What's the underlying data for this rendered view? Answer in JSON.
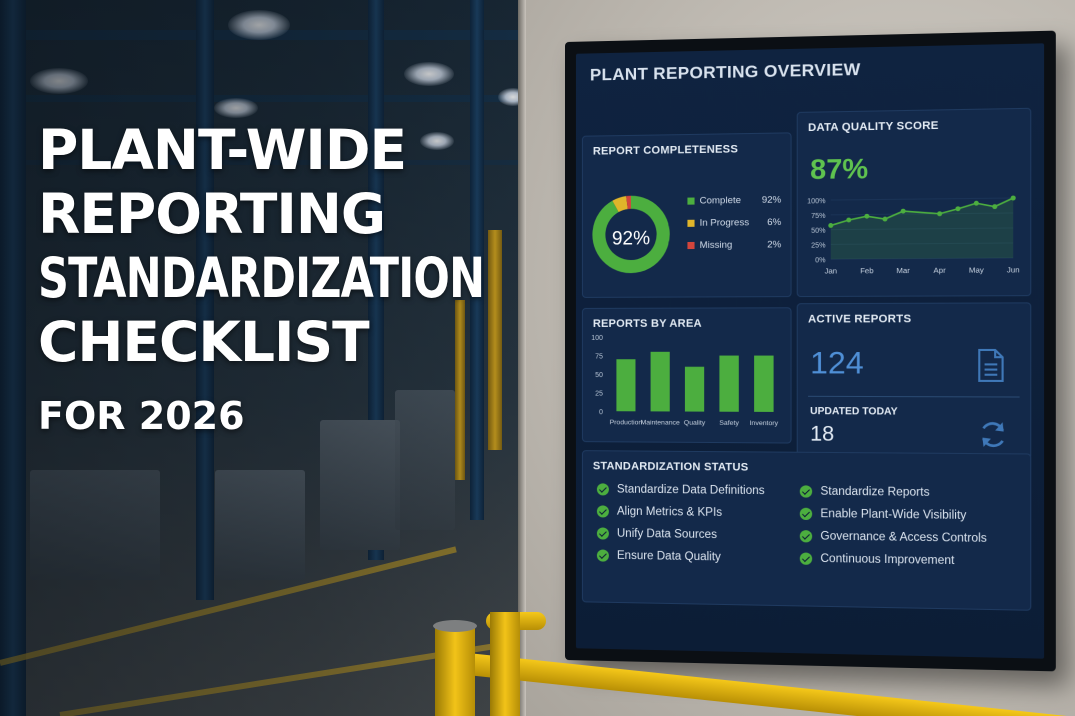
{
  "headline": {
    "lines": [
      "PLANT-WIDE",
      "REPORTING",
      "STANDARDIZATION",
      "CHECKLIST"
    ],
    "subline": "FOR 2026"
  },
  "dashboard": {
    "title": "PLANT REPORTING OVERVIEW",
    "completeness": {
      "title": "REPORT COMPLETENESS",
      "center_label": "92%",
      "legend": [
        {
          "label": "Complete",
          "value": "92%",
          "color": "#4cae3f"
        },
        {
          "label": "In Progress",
          "value": "6%",
          "color": "#e0b52a"
        },
        {
          "label": "Missing",
          "value": "2%",
          "color": "#d2453c"
        }
      ]
    },
    "quality": {
      "title": "DATA QUALITY SCORE",
      "score": "87%"
    },
    "area": {
      "title": "REPORTS BY AREA"
    },
    "active": {
      "title": "ACTIVE REPORTS",
      "count": "124",
      "updated_title": "UPDATED TODAY",
      "updated_count": "18"
    },
    "status": {
      "title": "STANDARDIZATION STATUS",
      "left_items": [
        "Standardize Data Definitions",
        "Align Metrics & KPIs",
        "Unify Data Sources",
        "Ensure Data Quality"
      ],
      "right_items": [
        "Standardize Reports",
        "Enable Plant-Wide Visibility",
        "Governance & Access Controls",
        "Continuous Improvement"
      ]
    }
  },
  "chart_data": [
    {
      "type": "pie",
      "title": "REPORT COMPLETENESS",
      "categories": [
        "Complete",
        "In Progress",
        "Missing"
      ],
      "values": [
        92,
        6,
        2
      ]
    },
    {
      "type": "area",
      "title": "DATA QUALITY SCORE",
      "categories": [
        "Jan",
        "Feb",
        "Mar",
        "Apr",
        "May",
        "Jun"
      ],
      "x_ticks_positions": [
        0,
        1,
        2,
        3,
        4,
        5
      ],
      "points_x": [
        0,
        0.5,
        1,
        1.5,
        2,
        3,
        3.5,
        4,
        4.5,
        5
      ],
      "points_y": [
        57,
        66,
        72,
        67,
        80,
        75,
        83,
        92,
        86,
        100
      ],
      "yticks": [
        "0%",
        "25%",
        "50%",
        "75%",
        "100%"
      ],
      "ylim": [
        0,
        100
      ],
      "color": "#4cae3f"
    },
    {
      "type": "bar",
      "title": "REPORTS BY AREA",
      "categories": [
        "Production",
        "Maintenance",
        "Quality",
        "Safety",
        "Inventory"
      ],
      "values": [
        70,
        80,
        60,
        75,
        75
      ],
      "yticks": [
        "0",
        "25",
        "50",
        "75",
        "100"
      ],
      "ylim": [
        0,
        100
      ],
      "color": "#4cae3f"
    }
  ]
}
